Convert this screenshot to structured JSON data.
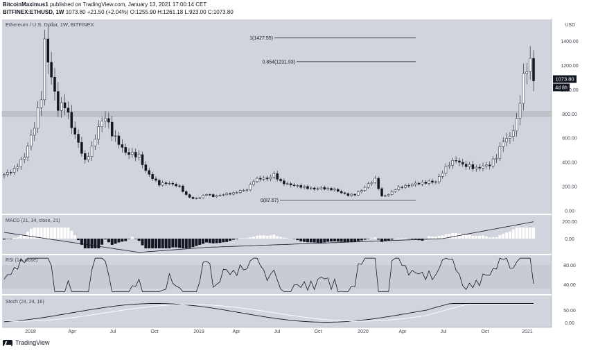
{
  "header": {
    "author": "BitcoinMaximus1",
    "published_text": "published on TradingView.com, January 13, 2021 17:00:14 CET",
    "symbol": "BITFINEX:ETHUSD, 1W",
    "last_price": "1073.80",
    "change": "+21.50 (+2.04%)",
    "ohlc": "O:1255.90 H:1261.18 L:923.00 C:1073.80"
  },
  "main_pane": {
    "title": "Ethereum / U.S. Dollar, 1W, BITFINEX",
    "currency": "USD",
    "price_ticks": [
      "1400.00",
      "1200.00",
      "1000.00",
      "800.00",
      "600.00",
      "400.00",
      "200.00",
      "0.00"
    ],
    "price_label": "1073.80",
    "countdown_label": "4d 8h",
    "fib_levels": [
      {
        "label": "1(1427.55)",
        "price": 1427.55
      },
      {
        "label": "0.854(1231.93)",
        "price": 1231.93
      },
      {
        "label": "0(87.67)",
        "price": 87.67
      }
    ],
    "resistance_zone": [
      780,
      820
    ]
  },
  "macd_pane": {
    "title": "MACD (21, 34, close, 21)",
    "ticks": [
      "200.00",
      "0.00"
    ]
  },
  "rsi_pane": {
    "title": "RSI (14, close)",
    "ticks": [
      "80.00",
      "40.00"
    ]
  },
  "stoch_pane": {
    "title": "Stoch (24, 24, 16)",
    "ticks": [
      "50.00",
      "0.00"
    ]
  },
  "time_axis": [
    "2018",
    "Apr",
    "Jul",
    "Oct",
    "2019",
    "Apr",
    "Jul",
    "Oct",
    "2020",
    "Apr",
    "Jul",
    "Oct",
    "2021"
  ],
  "colors": {
    "background": "#d1d4dc",
    "candle_up": "#ffffff",
    "candle_down": "#131722",
    "zone": "#bfc2c9"
  },
  "footer": {
    "brand": "TradingView"
  },
  "chart_data": {
    "type": "candlestick",
    "title": "Ethereum / U.S. Dollar, 1W, BITFINEX",
    "ylabel": "USD",
    "ylim": [
      0,
      1500
    ],
    "x_ticks": [
      "2018",
      "Apr",
      "Jul",
      "Oct",
      "2019",
      "Apr",
      "Jul",
      "Oct",
      "2020",
      "Apr",
      "Jul",
      "Oct",
      "2021"
    ],
    "close_path": [
      {
        "x": 0,
        "close": 300
      },
      {
        "x": 3,
        "close": 340
      },
      {
        "x": 6,
        "close": 450
      },
      {
        "x": 9,
        "close": 700
      },
      {
        "x": 11,
        "close": 950
      },
      {
        "x": 12,
        "close": 1380
      },
      {
        "x": 13,
        "close": 1250
      },
      {
        "x": 14,
        "close": 1100
      },
      {
        "x": 16,
        "close": 850
      },
      {
        "x": 18,
        "close": 880
      },
      {
        "x": 20,
        "close": 700
      },
      {
        "x": 22,
        "close": 560
      },
      {
        "x": 24,
        "close": 410
      },
      {
        "x": 26,
        "close": 520
      },
      {
        "x": 28,
        "close": 690
      },
      {
        "x": 30,
        "close": 780
      },
      {
        "x": 32,
        "close": 640
      },
      {
        "x": 34,
        "close": 560
      },
      {
        "x": 36,
        "close": 480
      },
      {
        "x": 38,
        "close": 470
      },
      {
        "x": 40,
        "close": 450
      },
      {
        "x": 42,
        "close": 330
      },
      {
        "x": 44,
        "close": 270
      },
      {
        "x": 46,
        "close": 220
      },
      {
        "x": 48,
        "close": 230
      },
      {
        "x": 50,
        "close": 220
      },
      {
        "x": 52,
        "close": 200
      },
      {
        "x": 54,
        "close": 130
      },
      {
        "x": 56,
        "close": 100
      },
      {
        "x": 58,
        "close": 110
      },
      {
        "x": 60,
        "close": 140
      },
      {
        "x": 62,
        "close": 120
      },
      {
        "x": 64,
        "close": 130
      },
      {
        "x": 66,
        "close": 140
      },
      {
        "x": 68,
        "close": 145
      },
      {
        "x": 70,
        "close": 165
      },
      {
        "x": 72,
        "close": 175
      },
      {
        "x": 74,
        "close": 250
      },
      {
        "x": 76,
        "close": 270
      },
      {
        "x": 78,
        "close": 265
      },
      {
        "x": 80,
        "close": 300
      },
      {
        "x": 82,
        "close": 240
      },
      {
        "x": 84,
        "close": 220
      },
      {
        "x": 86,
        "close": 210
      },
      {
        "x": 88,
        "close": 200
      },
      {
        "x": 90,
        "close": 190
      },
      {
        "x": 92,
        "close": 180
      },
      {
        "x": 94,
        "close": 190
      },
      {
        "x": 96,
        "close": 180
      },
      {
        "x": 98,
        "close": 175
      },
      {
        "x": 100,
        "close": 150
      },
      {
        "x": 102,
        "close": 130
      },
      {
        "x": 104,
        "close": 135
      },
      {
        "x": 106,
        "close": 170
      },
      {
        "x": 108,
        "close": 220
      },
      {
        "x": 110,
        "close": 260
      },
      {
        "x": 112,
        "close": 120
      },
      {
        "x": 114,
        "close": 135
      },
      {
        "x": 116,
        "close": 180
      },
      {
        "x": 118,
        "close": 200
      },
      {
        "x": 120,
        "close": 210
      },
      {
        "x": 122,
        "close": 225
      },
      {
        "x": 124,
        "close": 230
      },
      {
        "x": 126,
        "close": 240
      },
      {
        "x": 128,
        "close": 240
      },
      {
        "x": 130,
        "close": 320
      },
      {
        "x": 132,
        "close": 390
      },
      {
        "x": 134,
        "close": 420
      },
      {
        "x": 136,
        "close": 380
      },
      {
        "x": 138,
        "close": 370
      },
      {
        "x": 140,
        "close": 350
      },
      {
        "x": 142,
        "close": 370
      },
      {
        "x": 144,
        "close": 380
      },
      {
        "x": 146,
        "close": 450
      },
      {
        "x": 148,
        "close": 580
      },
      {
        "x": 150,
        "close": 610
      },
      {
        "x": 152,
        "close": 740
      },
      {
        "x": 154,
        "close": 1100
      },
      {
        "x": 156,
        "close": 1250
      },
      {
        "x": 157,
        "close": 1073.8
      }
    ]
  }
}
